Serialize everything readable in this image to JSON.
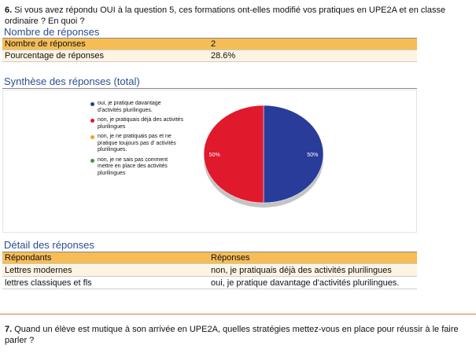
{
  "question6": {
    "number": "6.",
    "text": "Si vous avez répondu OUI à la question 5, ces formations ont-elles modifié vos pratiques en UPE2A et en classe ordinaire ? En quoi ?"
  },
  "stats": {
    "title": "Nombre de réponses",
    "rows": [
      [
        "Nombre de réponses",
        "2"
      ],
      [
        "Pourcentage de réponses",
        "28.6%"
      ]
    ]
  },
  "chart_data": {
    "type": "pie",
    "title": "Synthèse des réponses (total)",
    "categories": [
      "oui, je pratique davantage d'activités plurilingues.",
      "non, je pratiquais déjà des activités plurilingues",
      "non, je ne pratiquais pas et ne pratique toujours pas d' activités plurilingues.",
      "non, je ne sais pas comment mettre en place des activités plurilingues"
    ],
    "values": [
      50,
      50,
      0,
      0
    ],
    "value_labels": [
      "50%",
      "50%",
      null,
      null
    ],
    "colors": [
      "#2a3c9a",
      "#e0192d",
      "#f2a023",
      "#3c9b3a"
    ]
  },
  "detail": {
    "title": "Détail des réponses",
    "header": [
      "Répondants",
      "Réponses"
    ],
    "rows": [
      [
        "Lettres modernes",
        "non, je pratiquais déjà des activités plurilingues"
      ],
      [
        "lettres classiques et fls",
        "oui, je pratique davantage d'activités plurilingues."
      ]
    ]
  },
  "question7": {
    "number": "7.",
    "text": "Quand un élève est mutique à son arrivée en UPE2A, quelles stratégies mettez-vous en place pour réussir à le faire parler ?"
  }
}
